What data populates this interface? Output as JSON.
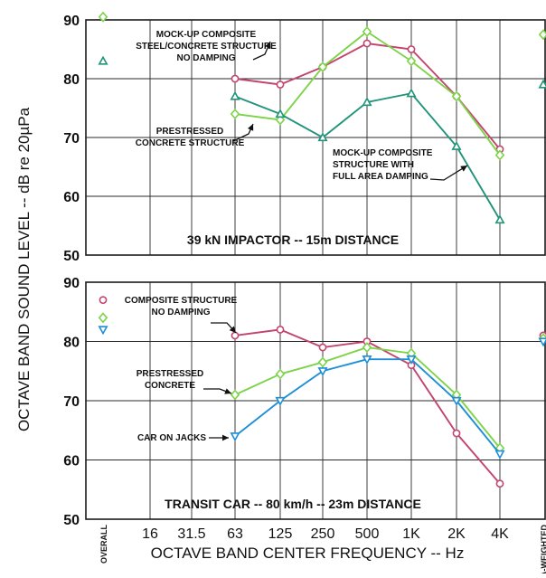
{
  "chart_data": [
    {
      "type": "line",
      "panel": "top",
      "title": "39 kN IMPACTOR -- 15m DISTANCE",
      "ylim": [
        50,
        90
      ],
      "yticks": [
        50,
        60,
        70,
        80,
        90
      ],
      "categories": [
        "OVERALL",
        "16",
        "31.5",
        "63",
        "125",
        "250",
        "500",
        "1K",
        "2K",
        "4K",
        "A-WEIGHTED"
      ],
      "grid": true,
      "series": [
        {
          "name": "MOCK-UP COMPOSITE STEEL/CONCRETE STRUCTURE NO DAMPING",
          "color": "#c2456e",
          "marker": "circle",
          "band_values": {
            "63": 80,
            "125": 79,
            "250": 82,
            "500": 86,
            "1K": 85,
            "2K": 77,
            "4K": 68
          }
        },
        {
          "name": "PRESTRESSED CONCRETE STRUCTURE",
          "color": "#7dd34a",
          "marker": "diamond",
          "overall": 90.5,
          "a_weighted": 87.5,
          "band_values": {
            "63": 74,
            "125": 73,
            "250": 82,
            "500": 88,
            "1K": 83,
            "2K": 77,
            "4K": 67
          }
        },
        {
          "name": "MOCK-UP COMPOSITE STRUCTURE WITH FULL AREA DAMPING",
          "color": "#21947a",
          "marker": "triangle-up",
          "overall": 83,
          "a_weighted": 79,
          "band_values": {
            "63": 77,
            "125": 74,
            "250": 70,
            "500": 76,
            "1K": 77.5,
            "2K": 68.5,
            "4K": 56
          }
        }
      ]
    },
    {
      "type": "line",
      "panel": "bottom",
      "title": "TRANSIT CAR -- 80 km/h -- 23m DISTANCE",
      "ylim": [
        50,
        90
      ],
      "yticks": [
        50,
        60,
        70,
        80,
        90
      ],
      "categories": [
        "OVERALL",
        "16",
        "31.5",
        "63",
        "125",
        "250",
        "500",
        "1K",
        "2K",
        "4K",
        "A-WEIGHTED"
      ],
      "grid": true,
      "series": [
        {
          "name": "COMPOSITE STRUCTURE NO DAMPING",
          "color": "#c2456e",
          "marker": "circle",
          "overall": 87,
          "a_weighted": 81,
          "band_values": {
            "63": 81,
            "125": 82,
            "250": 79,
            "500": 80,
            "1K": 76,
            "2K": 64.5,
            "4K": 56
          }
        },
        {
          "name": "PRESTRESSED CONCRETE",
          "color": "#7dd34a",
          "marker": "diamond",
          "overall": 84,
          "a_weighted": 80.5,
          "band_values": {
            "63": 71,
            "125": 74.5,
            "250": 76.5,
            "500": 79,
            "1K": 78,
            "2K": 71,
            "4K": 62
          }
        },
        {
          "name": "CAR ON JACKS",
          "color": "#1e8fd6",
          "marker": "triangle-down",
          "overall": 82,
          "a_weighted": 80,
          "band_values": {
            "63": 64,
            "125": 70,
            "250": 75,
            "500": 77,
            "1K": 77,
            "2K": 70,
            "4K": 61
          }
        }
      ]
    }
  ],
  "axis_labels": {
    "y": "OCTAVE BAND SOUND LEVEL -- dB re 20µPa",
    "x": "OCTAVE BAND CENTER FREQUENCY -- Hz"
  },
  "annotations": {
    "top": [
      [
        "MOCK-UP COMPOSITE",
        "STEEL/CONCRETE STRUCTURE",
        "NO DAMPING"
      ],
      [
        "PRESTRESSED",
        "CONCRETE STRUCTURE"
      ],
      [
        "MOCK-UP COMPOSITE",
        "STRUCTURE WITH",
        "FULL AREA DAMPING"
      ]
    ],
    "bottom": [
      [
        "COMPOSITE STRUCTURE",
        "NO DAMPING"
      ],
      [
        "PRESTRESSED",
        "CONCRETE"
      ],
      [
        "CAR ON JACKS"
      ]
    ]
  }
}
